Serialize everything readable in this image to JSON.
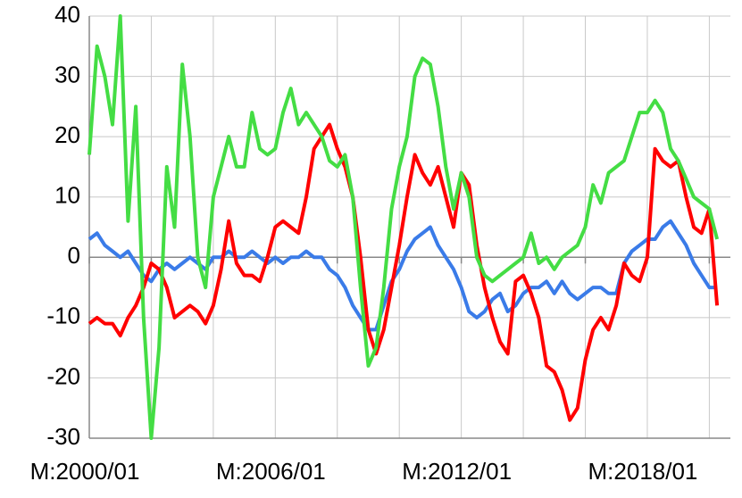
{
  "chart_data": {
    "type": "line",
    "categories": [
      "M:2000/01",
      null,
      null,
      null,
      null,
      null,
      null,
      null,
      null,
      null,
      null,
      null,
      null,
      null,
      null,
      null,
      null,
      null,
      null,
      null,
      null,
      null,
      null,
      null,
      "M:2006/01",
      null,
      null,
      null,
      null,
      null,
      null,
      null,
      null,
      null,
      null,
      null,
      null,
      null,
      null,
      null,
      null,
      null,
      null,
      null,
      null,
      null,
      null,
      null,
      "M:2012/01",
      null,
      null,
      null,
      null,
      null,
      null,
      null,
      null,
      null,
      null,
      null,
      null,
      null,
      null,
      null,
      null,
      null,
      null,
      null,
      null,
      null,
      null,
      null,
      "M:2018/01",
      null,
      null,
      null,
      null,
      null,
      null,
      null,
      null,
      null
    ],
    "series": [
      {
        "color": "#3a7be8",
        "values": [
          3,
          4,
          2,
          1,
          0,
          1,
          -1,
          -3,
          -4,
          -2,
          -1,
          -2,
          -1,
          0,
          -1,
          -2,
          0,
          0,
          1,
          0,
          0,
          1,
          0,
          -1,
          0,
          -1,
          0,
          0,
          1,
          0,
          0,
          -2,
          -3,
          -5,
          -8,
          -10,
          -12,
          -12,
          -8,
          -4,
          -2,
          1,
          3,
          4,
          5,
          2,
          0,
          -2,
          -5,
          -9,
          -10,
          -9,
          -7,
          -6,
          -9,
          -8,
          -6,
          -5,
          -5,
          -4,
          -6,
          -4,
          -6,
          -7,
          -6,
          -5,
          -5,
          -6,
          -6,
          -1,
          1,
          2,
          3,
          3,
          5,
          6,
          4,
          2,
          -1,
          -3,
          -5,
          -5
        ]
      },
      {
        "color": "#ff0000",
        "values": [
          -11,
          -10,
          -11,
          -11,
          -13,
          -10,
          -8,
          -5,
          -1,
          -2,
          -5,
          -10,
          -9,
          -8,
          -9,
          -11,
          -8,
          -2,
          6,
          -1,
          -3,
          -3,
          -4,
          0,
          5,
          6,
          5,
          4,
          10,
          18,
          20,
          22,
          18,
          15,
          10,
          0,
          -12,
          -16,
          -12,
          -5,
          2,
          10,
          17,
          14,
          12,
          15,
          10,
          5,
          14,
          12,
          2,
          -5,
          -10,
          -14,
          -16,
          -4,
          -3,
          -6,
          -10,
          -18,
          -19,
          -22,
          -27,
          -25,
          -17,
          -12,
          -10,
          -12,
          -8,
          -1,
          -3,
          -4,
          0,
          18,
          16,
          15,
          16,
          10,
          5,
          4,
          8,
          -8
        ]
      },
      {
        "color": "#44dd44",
        "values": [
          17,
          35,
          30,
          22,
          40,
          6,
          25,
          -10,
          -30,
          -15,
          15,
          5,
          32,
          20,
          0,
          -5,
          10,
          15,
          20,
          15,
          15,
          24,
          18,
          17,
          18,
          24,
          28,
          22,
          24,
          22,
          20,
          16,
          15,
          17,
          10,
          -5,
          -18,
          -15,
          -5,
          8,
          15,
          20,
          30,
          33,
          32,
          25,
          15,
          8,
          14,
          10,
          0,
          -3,
          -4,
          -3,
          -2,
          -1,
          0,
          4,
          -1,
          0,
          -2,
          0,
          1,
          2,
          5,
          12,
          9,
          14,
          15,
          16,
          20,
          24,
          24,
          26,
          24,
          18,
          16,
          13,
          10,
          9,
          8,
          3
        ]
      }
    ],
    "ylim": [
      -30,
      40
    ],
    "yticks": [
      -30,
      -20,
      -10,
      0,
      10,
      20,
      30,
      40
    ],
    "grid": true
  }
}
